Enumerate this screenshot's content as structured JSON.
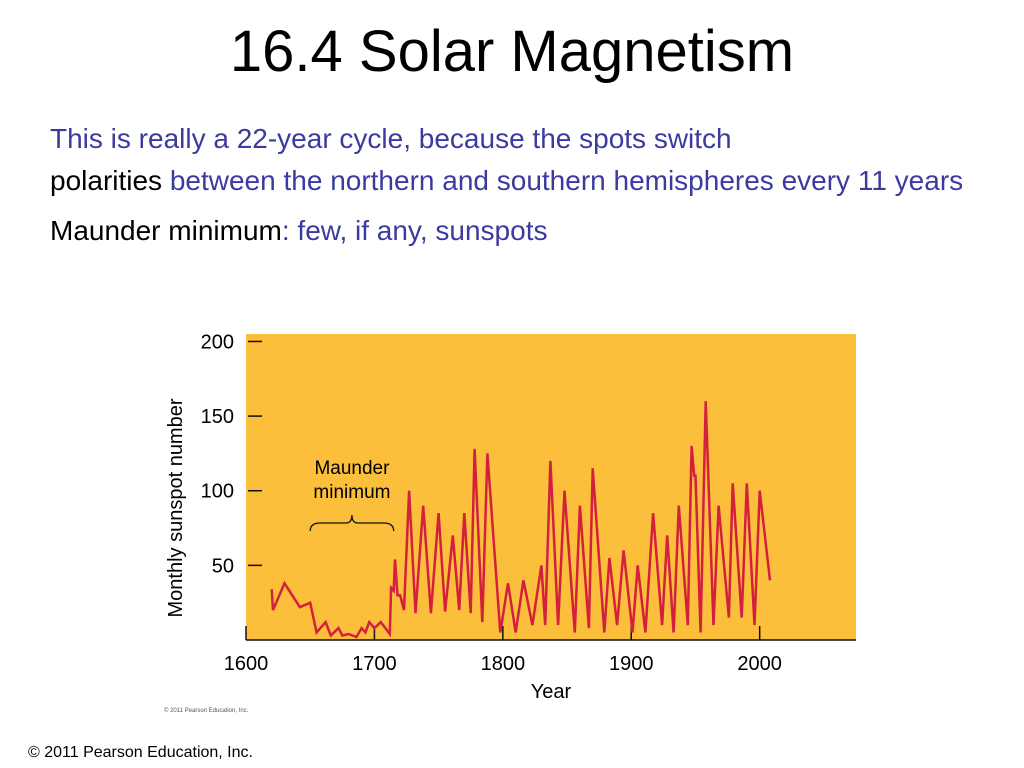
{
  "slide": {
    "title": "16.4 Solar Magnetism",
    "bullet1": {
      "part1": "This is really a 22-year cycle, because the spots switch",
      "part2": "polarities",
      "part3": "between the northern and southern hemispheres every 11 years"
    },
    "bullet2": {
      "part1": "Maunder minimum",
      "part2": ": few, if any, sunspots"
    },
    "copyright": "© 2011 Pearson Education, Inc."
  },
  "colors": {
    "plot_background": "#fcbf3c",
    "line": "#d3203c",
    "text_blue": "#3a3aa0"
  },
  "chart_data": {
    "type": "line",
    "xlabel": "Year",
    "ylabel": "Monthly sunspot number",
    "xlim": [
      1600,
      2075
    ],
    "ylim": [
      0,
      205
    ],
    "xticks": [
      "1600",
      "1700",
      "1800",
      "1900",
      "2000"
    ],
    "yticks": [
      "50",
      "100",
      "150",
      "200"
    ],
    "grid": false,
    "annotation": {
      "text_line1": "Maunder",
      "text_line2": "minimum",
      "x_start": 1650,
      "x_end": 1715
    },
    "image_credit": "© 2011 Pearson Education, Inc.",
    "series": [
      {
        "values": [
          [
            1620,
            34
          ],
          [
            1621,
            20
          ],
          [
            1630,
            38
          ],
          [
            1642,
            22
          ],
          [
            1650,
            25
          ],
          [
            1655,
            5
          ],
          [
            1662,
            12
          ],
          [
            1666,
            3
          ],
          [
            1672,
            8
          ],
          [
            1675,
            3
          ],
          [
            1680,
            4
          ],
          [
            1686,
            2
          ],
          [
            1690,
            8
          ],
          [
            1693,
            5
          ],
          [
            1696,
            12
          ],
          [
            1700,
            8
          ],
          [
            1705,
            12
          ],
          [
            1712,
            4
          ],
          [
            1713,
            35
          ],
          [
            1715,
            33
          ],
          [
            1716,
            54
          ],
          [
            1718,
            30
          ],
          [
            1720,
            30
          ],
          [
            1723,
            20
          ],
          [
            1727,
            100
          ],
          [
            1732,
            18
          ],
          [
            1738,
            90
          ],
          [
            1744,
            18
          ],
          [
            1750,
            85
          ],
          [
            1755,
            19
          ],
          [
            1761,
            70
          ],
          [
            1766,
            20
          ],
          [
            1770,
            85
          ],
          [
            1775,
            18
          ],
          [
            1778,
            128
          ],
          [
            1784,
            12
          ],
          [
            1788,
            125
          ],
          [
            1798,
            5
          ],
          [
            1804,
            38
          ],
          [
            1810,
            5
          ],
          [
            1816,
            40
          ],
          [
            1823,
            10
          ],
          [
            1830,
            50
          ],
          [
            1833,
            10
          ],
          [
            1837,
            120
          ],
          [
            1843,
            10
          ],
          [
            1848,
            100
          ],
          [
            1856,
            5
          ],
          [
            1860,
            90
          ],
          [
            1867,
            8
          ],
          [
            1870,
            115
          ],
          [
            1879,
            5
          ],
          [
            1883,
            55
          ],
          [
            1889,
            10
          ],
          [
            1894,
            60
          ],
          [
            1901,
            5
          ],
          [
            1905,
            50
          ],
          [
            1911,
            5
          ],
          [
            1917,
            85
          ],
          [
            1924,
            10
          ],
          [
            1928,
            70
          ],
          [
            1933,
            5
          ],
          [
            1937,
            90
          ],
          [
            1944,
            10
          ],
          [
            1947,
            130
          ],
          [
            1949,
            110
          ],
          [
            1950,
            110
          ],
          [
            1954,
            5
          ],
          [
            1958,
            160
          ],
          [
            1964,
            10
          ],
          [
            1968,
            90
          ],
          [
            1976,
            15
          ],
          [
            1979,
            105
          ],
          [
            1986,
            15
          ],
          [
            1990,
            105
          ],
          [
            1996,
            10
          ],
          [
            2000,
            100
          ],
          [
            2008,
            40
          ]
        ]
      }
    ]
  }
}
